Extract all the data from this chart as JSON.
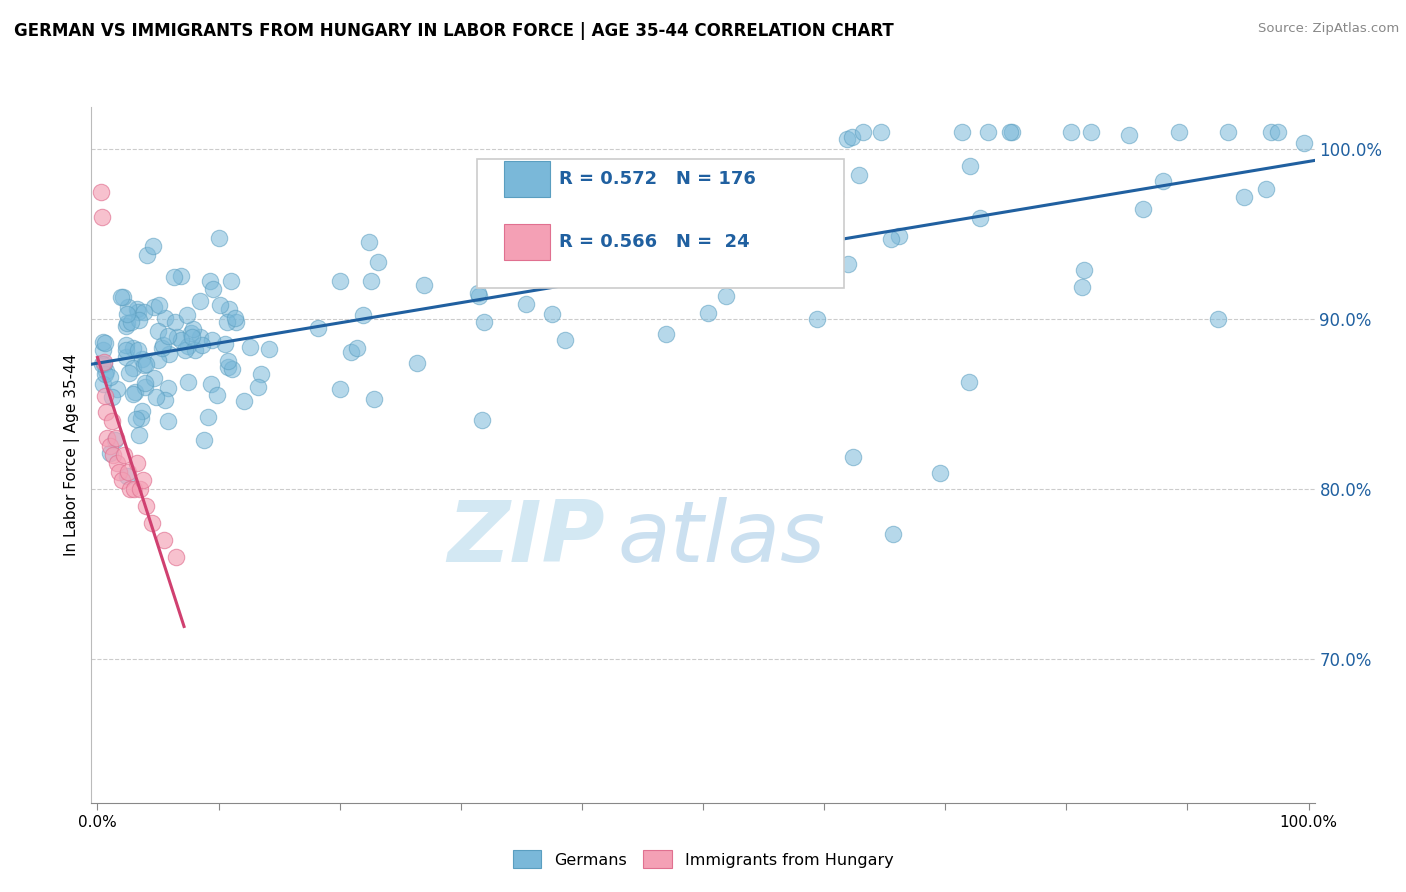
{
  "title": "GERMAN VS IMMIGRANTS FROM HUNGARY IN LABOR FORCE | AGE 35-44 CORRELATION CHART",
  "source": "Source: ZipAtlas.com",
  "ylabel": "In Labor Force | Age 35-44",
  "ytick_labels": [
    "70.0%",
    "80.0%",
    "90.0%",
    "100.0%"
  ],
  "ytick_values": [
    0.7,
    0.8,
    0.9,
    1.0
  ],
  "blue_color": "#7ab8d9",
  "blue_edge_color": "#5a9ec0",
  "pink_color": "#f4a0b5",
  "pink_edge_color": "#e07090",
  "blue_line_color": "#2060a0",
  "pink_line_color": "#d04070",
  "R_blue": 0.572,
  "N_blue": 176,
  "R_pink": 0.566,
  "N_pink": 24,
  "legend_label_blue": "Germans",
  "legend_label_pink": "Immigrants from Hungary",
  "watermark_zip": "ZIP",
  "watermark_atlas": "atlas",
  "ylim_low": 0.615,
  "ylim_high": 1.025,
  "xlim_low": -0.005,
  "xlim_high": 1.005
}
